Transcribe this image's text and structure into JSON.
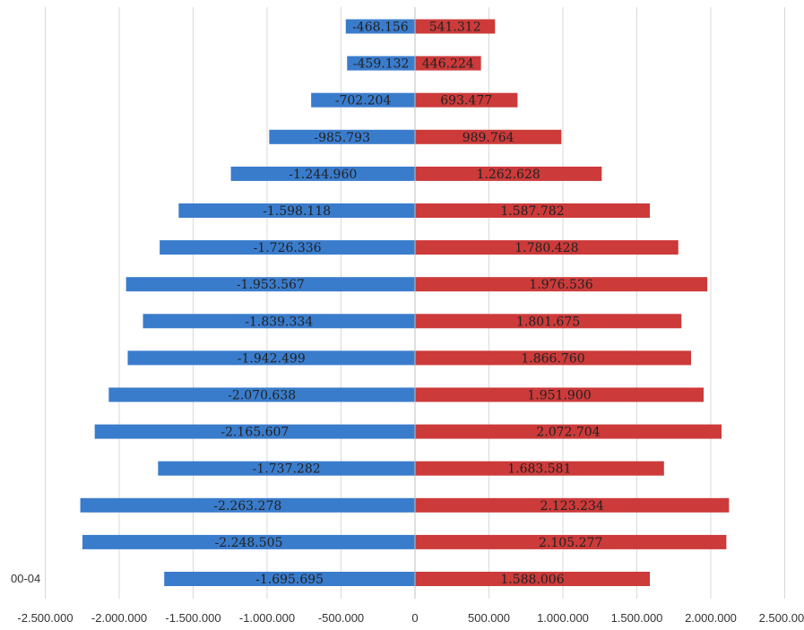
{
  "chart_data": {
    "type": "bar",
    "orientation": "horizontal",
    "subtype": "population-pyramid",
    "categories": [
      "00-04",
      "",
      "",
      "",
      "",
      "",
      "",
      "",
      "",
      "",
      "",
      "",
      "",
      "",
      "",
      ""
    ],
    "series": [
      {
        "color": "#3a7ccc",
        "values": [
          -1695695,
          -2248505,
          -2263278,
          -1737282,
          -2165607,
          -2070638,
          -1942499,
          -1839334,
          -1953567,
          -1726336,
          -1598118,
          -1244960,
          -985793,
          -702204,
          -459132,
          -468156
        ],
        "labels": [
          "-1.695.695",
          "-2.248.505",
          "-2.263.278",
          "-1.737.282",
          "-2.165.607",
          "-2.070.638",
          "-1.942.499",
          "-1.839.334",
          "-1.953.567",
          "-1.726.336",
          "-1.598.118",
          "-1.244.960",
          "-985.793",
          "-702.204",
          "-459.132",
          "-468.156"
        ]
      },
      {
        "color": "#cc3a3a",
        "values": [
          1588006,
          2105277,
          2123234,
          1683581,
          2072704,
          1951900,
          1866760,
          1801675,
          1976536,
          1780428,
          1587782,
          1262628,
          989764,
          693477,
          446224,
          541312
        ],
        "labels": [
          "1.588.006",
          "2.105.277",
          "2.123.234",
          "1.683.581",
          "2.072.704",
          "1.951.900",
          "1.866.760",
          "1.801.675",
          "1.976.536",
          "1.780.428",
          "1.587.782",
          "1.262.628",
          "989.764",
          "693.477",
          "446.224",
          "541.312"
        ]
      }
    ],
    "xlim": [
      -2500000,
      2500000
    ],
    "xticks": [
      -2500000,
      -2000000,
      -1500000,
      -1000000,
      -500000,
      0,
      500000,
      1000000,
      1500000,
      2000000,
      2500000
    ],
    "xtick_labels": [
      "-2.500.000",
      "-2.000.000",
      "-1.500.000",
      "-1.000.000",
      "-500.000",
      "0",
      "500.000",
      "1.000.000",
      "1.500.000",
      "2.000.000",
      "2.500.000"
    ],
    "grid": "vertical",
    "legend": "none",
    "title": "",
    "xlabel": "",
    "ylabel": ""
  }
}
